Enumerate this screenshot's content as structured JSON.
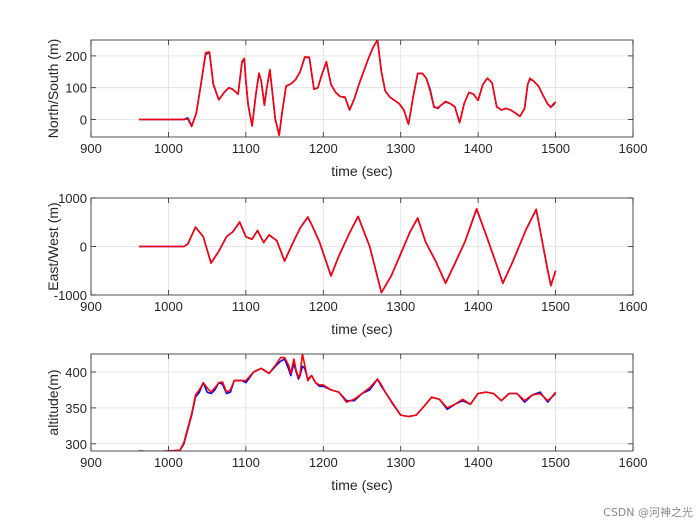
{
  "chart_data": [
    {
      "type": "line",
      "xlabel": "time (sec)",
      "ylabel": "North/South (m)",
      "xlim": [
        900,
        1600
      ],
      "ylim": [
        -55,
        250
      ],
      "xticks": [
        900,
        1000,
        1100,
        1200,
        1300,
        1400,
        1500,
        1600
      ],
      "xtick_labels": [
        "900",
        "1000",
        "1100",
        "1200",
        "1300",
        "1400",
        "1500",
        "1600"
      ],
      "yticks": [
        0,
        100,
        200
      ],
      "ytick_labels": [
        "0",
        "100",
        "200"
      ],
      "grid": true,
      "series": [
        {
          "name": "blue",
          "color": "#0000ff",
          "x": [
            962,
            1020,
            1025,
            1030,
            1036,
            1042,
            1048,
            1053,
            1058,
            1065,
            1072,
            1078,
            1083,
            1090,
            1095,
            1098,
            1100,
            1103,
            1108,
            1113,
            1117,
            1120,
            1124,
            1127,
            1131,
            1134,
            1138,
            1143,
            1147,
            1152,
            1158,
            1164,
            1170,
            1176,
            1182,
            1188,
            1193,
            1198,
            1204,
            1210,
            1216,
            1222,
            1228,
            1234,
            1240,
            1246,
            1252,
            1258,
            1264,
            1270,
            1275,
            1280,
            1286,
            1292,
            1298,
            1304,
            1310,
            1316,
            1322,
            1328,
            1333,
            1338,
            1343,
            1348,
            1352,
            1358,
            1364,
            1370,
            1376,
            1382,
            1388,
            1394,
            1400,
            1406,
            1412,
            1418,
            1424,
            1430,
            1436,
            1442,
            1448,
            1454,
            1460,
            1464,
            1467,
            1472,
            1478,
            1484,
            1490,
            1494,
            1497,
            1500
          ],
          "y": [
            0,
            0,
            5,
            -20,
            20,
            110,
            205,
            210,
            110,
            62,
            85,
            100,
            95,
            80,
            180,
            190,
            120,
            45,
            -20,
            80,
            145,
            120,
            45,
            100,
            155,
            90,
            0,
            -48,
            25,
            105,
            112,
            125,
            150,
            195,
            195,
            95,
            100,
            140,
            180,
            110,
            85,
            72,
            70,
            30,
            65,
            110,
            150,
            190,
            225,
            250,
            150,
            90,
            70,
            60,
            50,
            30,
            -15,
            70,
            145,
            145,
            130,
            95,
            40,
            35,
            45,
            55,
            50,
            40,
            -10,
            50,
            85,
            80,
            60,
            110,
            130,
            115,
            40,
            30,
            35,
            30,
            20,
            10,
            35,
            110,
            128,
            120,
            105,
            75,
            48,
            40,
            45,
            55
          ]
        },
        {
          "name": "red",
          "color": "#ff0000",
          "x": [
            962,
            1020,
            1025,
            1030,
            1036,
            1042,
            1048,
            1053,
            1058,
            1065,
            1072,
            1078,
            1083,
            1090,
            1095,
            1098,
            1100,
            1103,
            1108,
            1113,
            1117,
            1120,
            1124,
            1127,
            1131,
            1134,
            1138,
            1143,
            1147,
            1152,
            1158,
            1164,
            1170,
            1176,
            1182,
            1188,
            1193,
            1198,
            1204,
            1210,
            1216,
            1222,
            1228,
            1234,
            1240,
            1246,
            1252,
            1258,
            1264,
            1270,
            1275,
            1280,
            1286,
            1292,
            1298,
            1304,
            1310,
            1316,
            1322,
            1328,
            1333,
            1338,
            1343,
            1348,
            1352,
            1358,
            1364,
            1370,
            1376,
            1382,
            1388,
            1394,
            1400,
            1406,
            1412,
            1418,
            1424,
            1430,
            1436,
            1442,
            1448,
            1454,
            1460,
            1464,
            1467,
            1472,
            1478,
            1484,
            1490,
            1494,
            1497,
            1500
          ],
          "y": [
            0,
            0,
            2,
            -22,
            20,
            110,
            210,
            212,
            112,
            62,
            86,
            100,
            95,
            80,
            182,
            192,
            120,
            45,
            -20,
            80,
            146,
            120,
            45,
            100,
            157,
            90,
            0,
            -50,
            25,
            105,
            112,
            125,
            150,
            197,
            196,
            95,
            100,
            140,
            182,
            110,
            85,
            72,
            70,
            30,
            65,
            110,
            150,
            190,
            225,
            250,
            150,
            90,
            70,
            60,
            50,
            30,
            -15,
            70,
            145,
            145,
            130,
            90,
            38,
            37,
            45,
            57,
            50,
            40,
            -10,
            50,
            85,
            80,
            60,
            110,
            130,
            115,
            40,
            30,
            35,
            30,
            20,
            10,
            35,
            110,
            130,
            120,
            105,
            75,
            48,
            38,
            48,
            55
          ]
        }
      ]
    },
    {
      "type": "line",
      "xlabel": "time (sec)",
      "ylabel": "East/West (m)",
      "xlim": [
        900,
        1600
      ],
      "ylim": [
        -1000,
        1000
      ],
      "xticks": [
        900,
        1000,
        1100,
        1200,
        1300,
        1400,
        1500,
        1600
      ],
      "xtick_labels": [
        "900",
        "1000",
        "1100",
        "1200",
        "1300",
        "1400",
        "1500",
        "1600"
      ],
      "yticks": [
        -1000,
        0,
        1000
      ],
      "ytick_labels": [
        "-1000",
        "0",
        "1000"
      ],
      "grid": true,
      "series": [
        {
          "name": "blue",
          "color": "#0000ff",
          "x": [
            962,
            1020,
            1025,
            1035,
            1045,
            1055,
            1065,
            1075,
            1083,
            1092,
            1100,
            1108,
            1115,
            1123,
            1130,
            1140,
            1150,
            1160,
            1170,
            1180,
            1185,
            1195,
            1210,
            1220,
            1233,
            1245,
            1260,
            1275,
            1288,
            1300,
            1312,
            1322,
            1332,
            1345,
            1358,
            1370,
            1383,
            1398,
            1410,
            1420,
            1432,
            1445,
            1462,
            1475,
            1490,
            1494,
            1500
          ],
          "y": [
            0,
            0,
            50,
            400,
            200,
            -340,
            -100,
            200,
            300,
            500,
            200,
            150,
            330,
            80,
            240,
            120,
            -300,
            50,
            380,
            600,
            450,
            100,
            -600,
            -200,
            250,
            620,
            0,
            -950,
            -600,
            -150,
            300,
            580,
            100,
            -300,
            -750,
            -350,
            100,
            770,
            250,
            -200,
            -750,
            -300,
            350,
            760,
            -500,
            -800,
            -500
          ]
        },
        {
          "name": "red",
          "color": "#ff0000",
          "x": [
            962,
            1020,
            1025,
            1035,
            1045,
            1055,
            1065,
            1075,
            1083,
            1092,
            1100,
            1108,
            1115,
            1123,
            1130,
            1140,
            1150,
            1160,
            1170,
            1180,
            1185,
            1195,
            1210,
            1220,
            1233,
            1245,
            1260,
            1275,
            1288,
            1300,
            1312,
            1322,
            1332,
            1345,
            1358,
            1370,
            1383,
            1398,
            1410,
            1420,
            1432,
            1445,
            1462,
            1475,
            1490,
            1494,
            1500
          ],
          "y": [
            0,
            0,
            50,
            400,
            200,
            -340,
            -100,
            200,
            300,
            510,
            200,
            150,
            330,
            80,
            240,
            120,
            -300,
            50,
            380,
            610,
            450,
            100,
            -610,
            -200,
            250,
            620,
            0,
            -950,
            -600,
            -150,
            300,
            590,
            100,
            -300,
            -760,
            -350,
            100,
            780,
            250,
            -200,
            -760,
            -300,
            350,
            770,
            -500,
            -810,
            -500
          ]
        }
      ]
    },
    {
      "type": "line",
      "xlabel": "time (sec)",
      "ylabel": "altitude(m)",
      "xlim": [
        900,
        1600
      ],
      "ylim": [
        290,
        425
      ],
      "xticks": [
        900,
        1000,
        1100,
        1200,
        1300,
        1400,
        1500,
        1600
      ],
      "xtick_labels": [
        "900",
        "1000",
        "1100",
        "1200",
        "1300",
        "1400",
        "1500",
        "1600"
      ],
      "yticks": [
        300,
        350,
        400
      ],
      "ytick_labels": [
        "300",
        "350",
        "400"
      ],
      "grid": true,
      "series": [
        {
          "name": "blue",
          "color": "#0000ff",
          "x": [
            962,
            980,
            1000,
            1015,
            1020,
            1025,
            1030,
            1035,
            1040,
            1045,
            1050,
            1055,
            1060,
            1065,
            1070,
            1075,
            1080,
            1085,
            1090,
            1095,
            1100,
            1110,
            1120,
            1130,
            1140,
            1145,
            1150,
            1155,
            1158,
            1162,
            1165,
            1168,
            1170,
            1173,
            1176,
            1180,
            1185,
            1190,
            1195,
            1200,
            1210,
            1220,
            1230,
            1240,
            1250,
            1260,
            1270,
            1275,
            1280,
            1290,
            1300,
            1310,
            1320,
            1330,
            1340,
            1350,
            1360,
            1370,
            1380,
            1390,
            1400,
            1410,
            1420,
            1430,
            1440,
            1450,
            1460,
            1470,
            1480,
            1490,
            1495,
            1500
          ],
          "y": [
            290,
            289,
            290,
            291,
            300,
            320,
            340,
            365,
            372,
            385,
            372,
            370,
            375,
            385,
            383,
            370,
            372,
            388,
            388,
            388,
            385,
            400,
            405,
            398,
            410,
            415,
            418,
            405,
            395,
            412,
            400,
            390,
            395,
            408,
            405,
            390,
            395,
            385,
            380,
            380,
            375,
            372,
            360,
            360,
            370,
            375,
            390,
            380,
            372,
            355,
            340,
            338,
            340,
            352,
            365,
            362,
            348,
            355,
            360,
            355,
            370,
            372,
            370,
            360,
            370,
            370,
            358,
            368,
            372,
            358,
            365,
            370
          ]
        },
        {
          "name": "red",
          "color": "#ff0000",
          "x": [
            962,
            980,
            1000,
            1015,
            1020,
            1025,
            1030,
            1035,
            1040,
            1045,
            1050,
            1055,
            1060,
            1065,
            1070,
            1075,
            1080,
            1085,
            1090,
            1095,
            1100,
            1110,
            1120,
            1130,
            1140,
            1145,
            1150,
            1155,
            1158,
            1162,
            1165,
            1168,
            1170,
            1173,
            1176,
            1180,
            1185,
            1190,
            1195,
            1200,
            1210,
            1220,
            1230,
            1240,
            1250,
            1260,
            1270,
            1275,
            1280,
            1290,
            1300,
            1310,
            1320,
            1330,
            1340,
            1350,
            1360,
            1370,
            1380,
            1390,
            1400,
            1410,
            1420,
            1430,
            1440,
            1450,
            1460,
            1470,
            1480,
            1490,
            1495,
            1500
          ],
          "y": [
            290,
            289,
            290,
            291,
            302,
            322,
            342,
            368,
            375,
            385,
            378,
            372,
            378,
            385,
            386,
            372,
            375,
            388,
            388,
            388,
            388,
            400,
            405,
            398,
            412,
            420,
            420,
            410,
            398,
            418,
            402,
            392,
            397,
            425,
            410,
            388,
            395,
            385,
            382,
            382,
            375,
            372,
            358,
            362,
            370,
            378,
            390,
            382,
            372,
            356,
            340,
            338,
            340,
            352,
            365,
            362,
            350,
            355,
            362,
            355,
            370,
            372,
            370,
            360,
            370,
            370,
            360,
            368,
            370,
            360,
            365,
            372
          ]
        }
      ]
    }
  ],
  "watermark": "CSDN @河神之光"
}
